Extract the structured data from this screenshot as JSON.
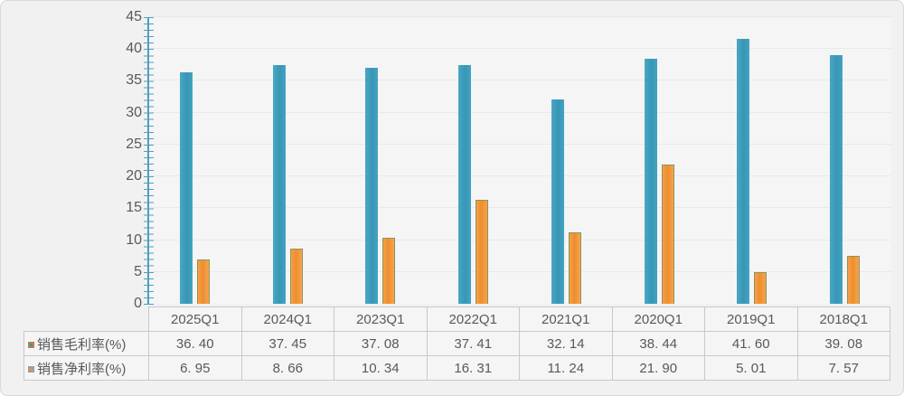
{
  "chart_data": {
    "type": "bar",
    "title": "",
    "categories": [
      "2025Q1",
      "2024Q1",
      "2023Q1",
      "2022Q1",
      "2021Q1",
      "2020Q1",
      "2019Q1",
      "2018Q1"
    ],
    "series": [
      {
        "name": "销售毛利率(%)",
        "values": [
          36.4,
          37.45,
          37.08,
          37.41,
          32.14,
          38.44,
          41.6,
          39.08
        ],
        "color": "#3FA0BF"
      },
      {
        "name": "销售净利率(%)",
        "values": [
          6.95,
          8.66,
          10.34,
          16.31,
          11.24,
          21.9,
          5.01,
          7.57
        ],
        "color": "#F0923E",
        "border_color": "#8E9455"
      }
    ],
    "xlabel": "",
    "ylabel": "",
    "ylim": [
      0,
      45
    ],
    "y_tick_step": 5,
    "y_minor_tick_step": 1,
    "grid": true,
    "legend_position": "table-left-column"
  },
  "y_axis": {
    "tick_labels": [
      "45",
      "40",
      "35",
      "30",
      "25",
      "20",
      "15",
      "10",
      "5",
      "0"
    ]
  },
  "table": {
    "headers": [
      "2025Q1",
      "2024Q1",
      "2023Q1",
      "2022Q1",
      "2021Q1",
      "2020Q1",
      "2019Q1",
      "2018Q1"
    ],
    "rows": [
      {
        "label": "销售毛利率(%)",
        "marker": "gross-margin-legend-swatch",
        "cells": [
          "36. 40",
          "37. 45",
          "37. 08",
          "37. 41",
          "32. 14",
          "38. 44",
          "41. 60",
          "39. 08"
        ]
      },
      {
        "label": "销售净利率(%)",
        "marker": "net-margin-legend-swatch",
        "cells": [
          "6. 95",
          "8. 66",
          "10. 34",
          "16. 31",
          "11. 24",
          "21. 90",
          "5. 01",
          "7. 57"
        ]
      }
    ]
  },
  "colors": {
    "frame_background": "#f1f1f2",
    "plot_background": "#f5f5f6",
    "axis": "#4e9fbc",
    "gridline": "#e9e9ea",
    "text": "#595959",
    "table_border": "#c9c9c9",
    "gross_bar": "#3FA0BF",
    "net_bar": "#F0923E",
    "net_bar_border": "#8E9455"
  }
}
